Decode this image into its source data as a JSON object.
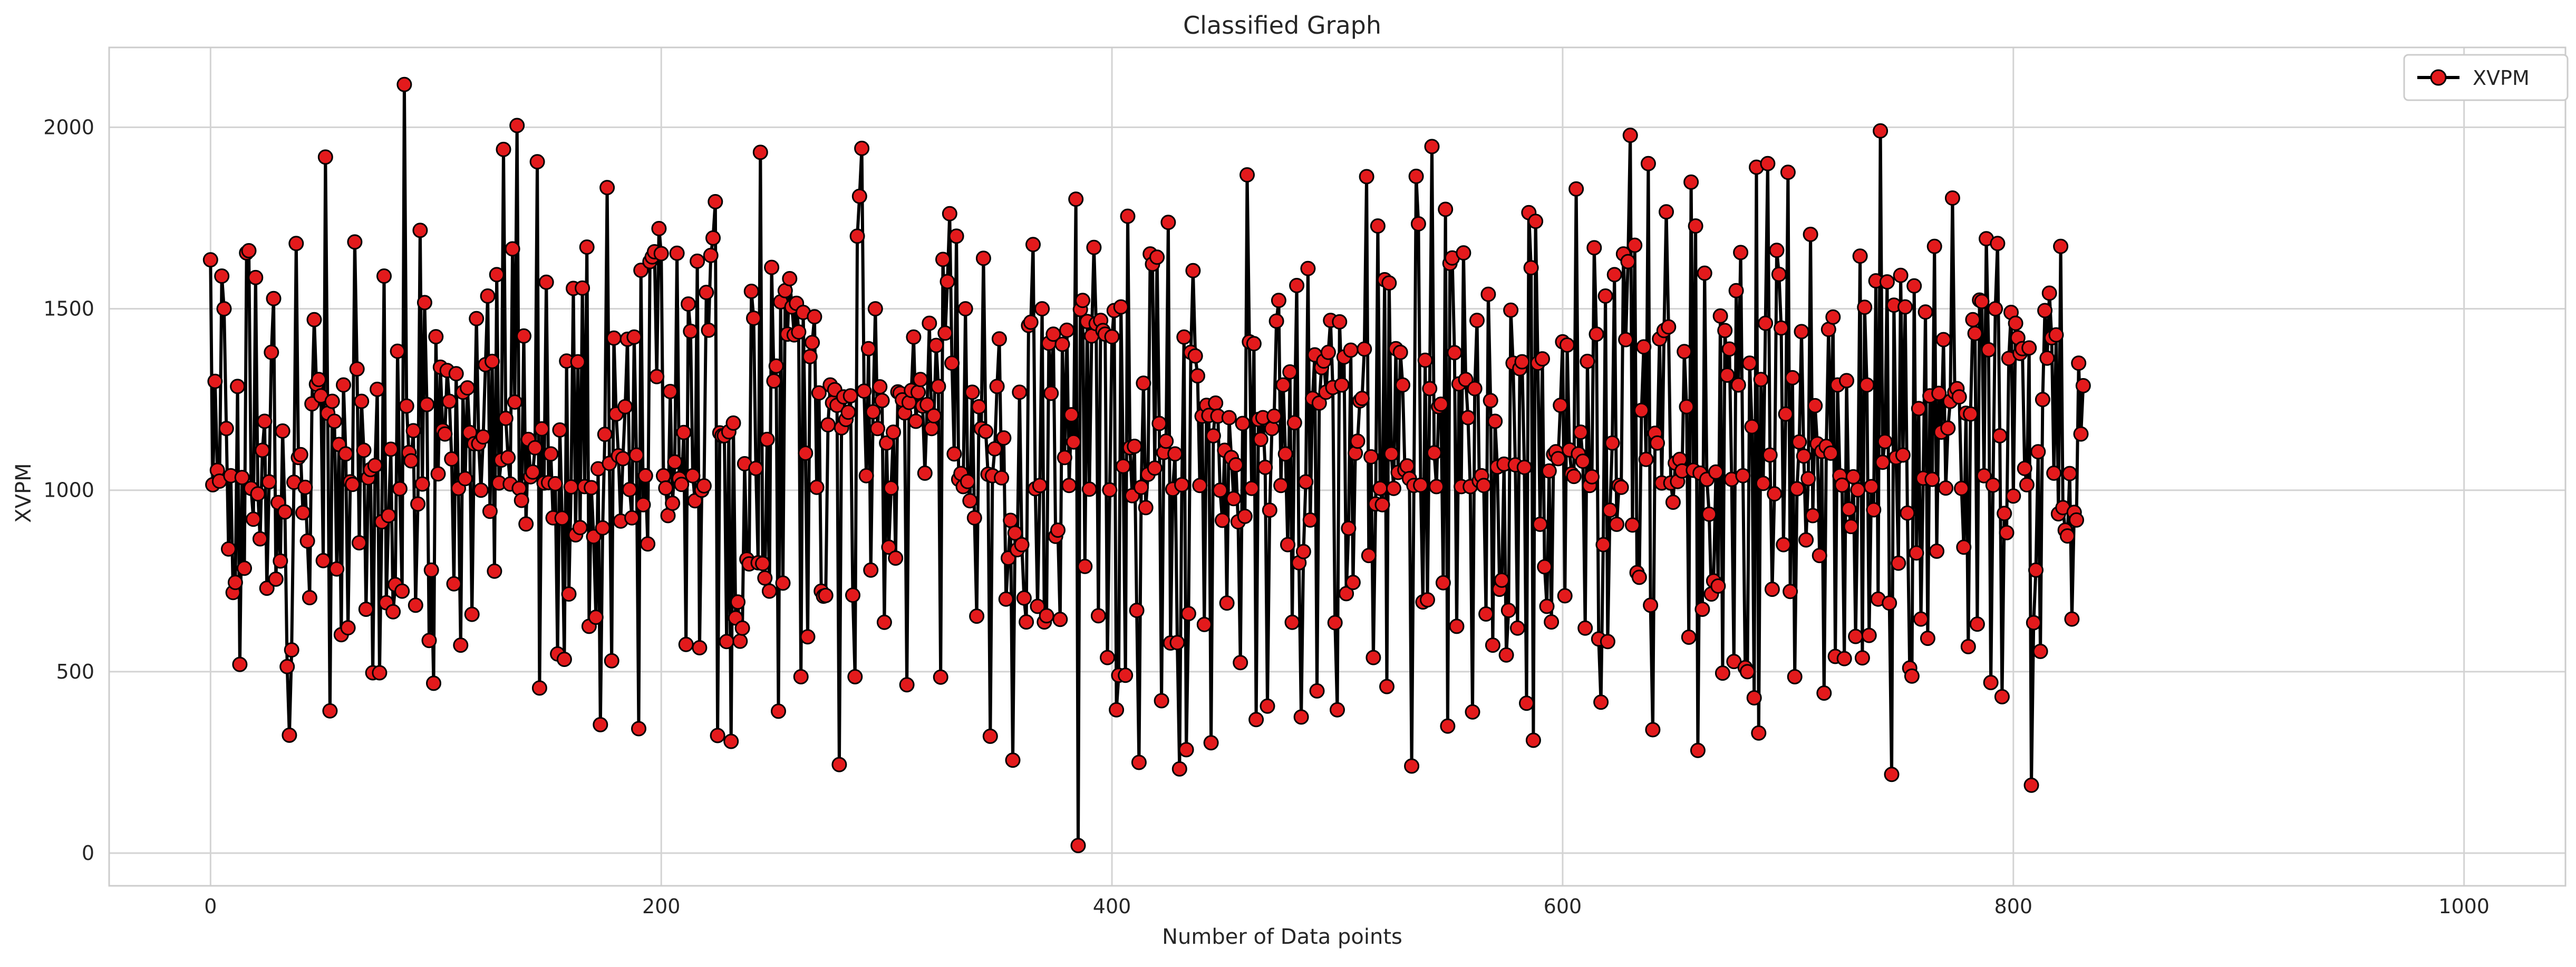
{
  "chart_data": {
    "type": "line",
    "title": "Classified Graph",
    "xlabel": "Number of Data points",
    "ylabel": "XVPM",
    "xlim": [
      -45,
      1045
    ],
    "ylim": [
      -90,
      2220
    ],
    "x_ticks": [
      0,
      200,
      400,
      600,
      800,
      1000
    ],
    "y_ticks": [
      0,
      500,
      1000,
      1500,
      2000
    ],
    "grid": true,
    "legend": {
      "placement": "top-right",
      "entries": [
        "XVPM"
      ]
    },
    "series": [
      {
        "name": "XVPM",
        "line_color": "#000000",
        "marker_face": "#e31a1c",
        "marker_edge": "#000000",
        "marker": "circle",
        "x_start": 0,
        "x_step": 1,
        "values": [
          1635,
          1015,
          1300,
          1055,
          1025,
          1590,
          1500,
          1170,
          838,
          1040,
          718,
          746,
          1286,
          520,
          1035,
          785,
          1654,
          1660,
          1005,
          920,
          1586,
          990,
          866,
          1110,
          1190,
          730,
          1023,
          1380,
          1528,
          755,
          966,
          805,
          1163,
          940,
          514,
          325,
          560,
          1022,
          1680,
          1090,
          1098,
          938,
          1008,
          860,
          704,
          1238,
          1470,
          1292,
          1305,
          1260,
          806,
          1918,
          1212,
          392,
          1245,
          1190,
          783,
          1126,
          602,
          1290,
          1100,
          621,
          1023,
          1016,
          1684,
          1334,
          855,
          1245,
          1110,
          672,
          1034,
          1057,
          497,
          1068,
          1278,
          497,
          913,
          1590,
          690,
          930,
          1113,
          665,
          740,
          1383,
          1004,
          722,
          2118,
          1232,
          1104,
          1081,
          1164,
          683,
          962,
          1716,
          1017,
          1517,
          1236,
          586,
          780,
          468,
          1423,
          1045,
          1339,
          1165,
          1155,
          1330,
          1245,
          1086,
          742,
          1321,
          1005,
          573,
          1270,
          1032,
          1282,
          1159,
          658,
          1128,
          1473,
          1128,
          1000,
          1147,
          1346,
          1535,
          942,
          1355,
          777,
          1594,
          1020,
          1083,
          1939,
          1198,
          1090,
          1017,
          1665,
          1243,
          2005,
          1005,
          972,
          1425,
          907,
          1140,
          1037,
          1050,
          1117,
          1905,
          455,
          1169,
          1020,
          1573,
          1021,
          1100,
          924,
          1018,
          549,
          1166,
          923,
          534,
          1356,
          714,
          1009,
          1556,
          877,
          1354,
          897,
          1557,
          1010,
          1670,
          625,
          1007,
          872,
          650,
          1059,
          354,
          896,
          1154,
          1834,
          1074,
          530,
          1419,
          1210,
          1095,
          915,
          1087,
          1230,
          1416,
          1002,
          924,
          1422,
          1097,
          343,
          1606,
          960,
          1040,
          852,
          1630,
          1643,
          1657,
          1313,
          1721,
          1652,
          1040,
          1006,
          930,
          1272,
          964,
          1078,
          1653,
          1032,
          1016,
          1159,
          575,
          1513,
          1438,
          1040,
          971,
          1631,
          566,
          1000,
          1012,
          1545,
          1441,
          1647,
          1695,
          1795,
          324,
          1158,
          1150,
          1150,
          583,
          1161,
          308,
          1185,
          648,
          692,
          584,
          620,
          1073,
          810,
          797,
          1548,
          1474,
          1060,
          800,
          1931,
          798,
          758,
          1140,
          722,
          1614,
          1301,
          1342,
          391,
          1519,
          744,
          1550,
          1430,
          1583,
          1505,
          1428,
          1515,
          1436,
          486,
          1490,
          1102,
          596,
          1368,
          1407,
          1478,
          1008,
          1268,
          722,
          708,
          710,
          1180,
          1290,
          1241,
          1277,
          1234,
          244,
          1172,
          1257,
          1195,
          1215,
          1260,
          711,
          486,
          1700,
          1810,
          1942,
          1273,
          1040,
          1390,
          780,
          1216,
          1500,
          1170,
          1285,
          1247,
          636,
          1130,
          843,
          1006,
          1160,
          813,
          1271,
          1267,
          1249,
          1213,
          464,
          1242,
          1275,
          1422,
          1190,
          1270,
          1305,
          1232,
          1047,
          1236,
          1460,
          1170,
          1205,
          1399,
          1286,
          485,
          1636,
          1433,
          1575,
          1762,
          1350,
          1100,
          1700,
          1030,
          1046,
          1010,
          1500,
          1024,
          971,
          1270,
          924,
          653,
          1230,
          1170,
          1639,
          1162,
          1044,
          322,
          1040,
          1114,
          1286,
          1417,
          1034,
          1144,
          700,
          813,
          917,
          256,
          882,
          836,
          1270,
          850,
          703,
          637,
          1454,
          1463,
          1677,
          1004,
          680,
          1013,
          1500,
          637,
          654,
          1405,
          1267,
          1430,
          873,
          890,
          644,
          1402,
          1090,
          1441,
          1013,
          1208,
          1133,
          1802,
          21,
          1498,
          1523,
          790,
          1465,
          1003,
          1425,
          1669,
          1459,
          654,
          1468,
          1440,
          1430,
          539,
          1001,
          1423,
          1495,
          395,
          490,
          1505,
          1066,
          490,
          1755,
          1117,
          985,
          1121,
          669,
          250,
          1008,
          1295,
          952,
          1044,
          1651,
          1623,
          1061,
          1642,
          1184,
          420,
          1104,
          1135,
          1738,
          579,
          1003,
          1100,
          580,
          232,
          1015,
          1422,
          285,
          660,
          1380,
          1605,
          1370,
          1315,
          1013,
          1204,
          630,
          1234,
          1206,
          304,
          1150,
          1240,
          1204,
          1000,
          917,
          1110,
          689,
          1200,
          1090,
          977,
          1070,
          913,
          525,
          1184,
          928,
          1869,
          1409,
          1005,
          1404,
          368,
          1195,
          1140,
          1200,
          1063,
          405,
          945,
          1170,
          1204,
          1466,
          1523,
          1013,
          1290,
          1100,
          850,
          1326,
          636,
          1186,
          1564,
          800,
          375,
          831,
          1023,
          1611,
          918,
          1253,
          1373,
          447,
          1240,
          1338,
          1356,
          1270,
          1380,
          1468,
          1283,
          635,
          395,
          1464,
          1290,
          1367,
          715,
          895,
          1386,
          746,
          1102,
          1135,
          1246,
          1253,
          1389,
          1864,
          820,
          1092,
          539,
          962,
          1728,
          1005,
          960,
          1580,
          459,
          1571,
          1100,
          1005,
          1390,
          1049,
          1380,
          1290,
          1056,
          1067,
          1032,
          240,
          1013,
          1865,
          1734,
          1014,
          692,
          1358,
          698,
          1280,
          1947,
          1103,
          1010,
          1230,
          1237,
          745,
          1774,
          350,
          1625,
          1640,
          1379,
          625,
          1293,
          1010,
          1654,
          1305,
          1200,
          1010,
          389,
          1280,
          1468,
          1026,
          1040,
          1013,
          659,
          1540,
          1247,
          573,
          1190,
          1064,
          727,
          752,
          1072,
          546,
          669,
          1496,
          1350,
          1070,
          620,
          1335,
          1354,
          1063,
          413,
          1765,
          1613,
          311,
          1741,
          1350,
          906,
          1362,
          789,
          680,
          1053,
          637,
          1099,
          1106,
          1087,
          1234,
          1409,
          709,
          1400,
          1111,
          1045,
          1038,
          1830,
          1100,
          1160,
          1080,
          620,
          1355,
          1013,
          1037,
          1668,
          1430,
          590,
          416,
          850,
          1535,
          583,
          945,
          1130,
          1594,
          906,
          1013,
          1008,
          1651,
          1415,
          1630,
          1978,
          904,
          1675,
          773,
          760,
          1220,
          1395,
          1085,
          1900,
          683,
          340,
          1157,
          1130,
          1417,
          1020,
          1440,
          1767,
          1450,
          1020,
          967,
          1075,
          1024,
          1085,
          1053,
          1382,
          1230,
          595,
          1849,
          1055,
          1728,
          283,
          1047,
          672,
          1598,
          1030,
          934,
          714,
          750,
          1050,
          736,
          1480,
          496,
          1440,
          1317,
          1389,
          1030,
          528,
          1550,
          1290,
          1655,
          1040,
          511,
          500,
          1350,
          1175,
          428,
          1890,
          331,
          1305,
          1019,
          1460,
          1900,
          1097,
          727,
          990,
          1661,
          1595,
          1447,
          850,
          1210,
          1876,
          721,
          1310,
          486,
          1004,
          1133,
          1437,
          1094,
          863,
          1032,
          1705,
          930,
          1233,
          1128,
          820,
          1107,
          441,
          1121,
          1443,
          1102,
          1477,
          542,
          1290,
          1040,
          1014,
          536,
          1302,
          948,
          900,
          1037,
          597,
          1001,
          1645,
          538,
          1504,
          1290,
          600,
          1010,
          946,
          1577,
          700,
          1990,
          1077,
          1134,
          1574,
          689,
          217,
          1510,
          1090,
          799,
          1592,
          1097,
          1505,
          937,
          510,
          488,
          1563,
          827,
          1225,
          645,
          1033,
          1491,
          592,
          1260,
          1030,
          1672,
          832,
          1267,
          1160,
          1415,
          1006,
          1171,
          1245,
          1805,
          1270,
          1280,
          1257,
          1005,
          843,
          1212,
          569,
          1210,
          1470,
          1432,
          631,
          1524,
          1520,
          1040,
          1693,
          1387,
          470,
          1014,
          1500,
          1680,
          1150,
          431,
          936,
          883,
          1363,
          1490,
          984,
          1460,
          1420,
          1377,
          1390,
          1060,
          1015,
          1392,
          187,
          635,
          780,
          1106,
          556,
          1250,
          1495,
          1364,
          1543,
          1420,
          1047,
          1428,
          935,
          1672,
          952,
          890,
          874,
          1046,
          645,
          939,
          918,
          1350,
          1155,
          1288
        ]
      }
    ]
  }
}
